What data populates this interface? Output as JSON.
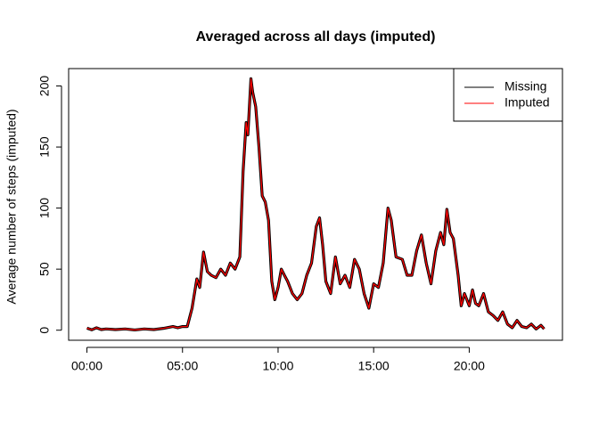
{
  "chart_data": {
    "type": "line",
    "title": "Averaged across all days (imputed)",
    "y_label": "Average number of steps (imputed)",
    "x": [
      0,
      0.25,
      0.5,
      0.75,
      1,
      1.5,
      2,
      2.5,
      3,
      3.5,
      4,
      4.5,
      4.75,
      5,
      5.25,
      5.5,
      5.75,
      5.9,
      6.1,
      6.3,
      6.5,
      6.75,
      7,
      7.25,
      7.5,
      7.75,
      8,
      8.17,
      8.33,
      8.42,
      8.58,
      8.67,
      8.83,
      9,
      9.17,
      9.33,
      9.5,
      9.67,
      9.83,
      10,
      10.17,
      10.33,
      10.5,
      10.75,
      11,
      11.25,
      11.5,
      11.75,
      12,
      12.17,
      12.33,
      12.5,
      12.75,
      13,
      13.25,
      13.5,
      13.75,
      14,
      14.25,
      14.5,
      14.75,
      15,
      15.25,
      15.5,
      15.75,
      15.92,
      16.17,
      16.5,
      16.75,
      17,
      17.25,
      17.5,
      17.75,
      18,
      18.25,
      18.5,
      18.67,
      18.83,
      19,
      19.17,
      19.42,
      19.58,
      19.75,
      20,
      20.17,
      20.33,
      20.5,
      20.75,
      21,
      21.25,
      21.5,
      21.75,
      22,
      22.25,
      22.5,
      22.75,
      23,
      23.25,
      23.5,
      23.75,
      23.92
    ],
    "series": [
      {
        "name": "Missing",
        "color": "#000000",
        "values": [
          1.7,
          0.3,
          2,
          0.5,
          1,
          0.5,
          1,
          0.2,
          1,
          0.5,
          1.5,
          3,
          2,
          3,
          3,
          18,
          42,
          35,
          64,
          48,
          45,
          43,
          50,
          45,
          55,
          50,
          60,
          130,
          170,
          160,
          206,
          195,
          183,
          150,
          110,
          105,
          90,
          40,
          25,
          35,
          50,
          45,
          40,
          30,
          25,
          30,
          45,
          55,
          85,
          92,
          70,
          40,
          30,
          60,
          38,
          45,
          35,
          58,
          50,
          30,
          18,
          38,
          35,
          55,
          100,
          90,
          60,
          58,
          45,
          45,
          65,
          78,
          55,
          38,
          65,
          80,
          70,
          99,
          80,
          75,
          45,
          20,
          30,
          20,
          33,
          22,
          20,
          30,
          15,
          12,
          8,
          15,
          5,
          2,
          8,
          3,
          2,
          5,
          1,
          4,
          1
        ]
      },
      {
        "name": "Imputed",
        "color": "#ff0000",
        "values": [
          1.7,
          0.3,
          2,
          0.5,
          1,
          0.5,
          1,
          0.2,
          1,
          0.5,
          1.5,
          3,
          2,
          3,
          3,
          18,
          42,
          35,
          64,
          48,
          45,
          43,
          50,
          45,
          55,
          50,
          60,
          130,
          170,
          160,
          206,
          195,
          183,
          150,
          110,
          105,
          90,
          40,
          25,
          35,
          50,
          45,
          40,
          30,
          25,
          30,
          45,
          55,
          85,
          92,
          70,
          40,
          30,
          60,
          38,
          45,
          35,
          58,
          50,
          30,
          18,
          38,
          35,
          55,
          100,
          90,
          60,
          58,
          45,
          45,
          65,
          78,
          55,
          38,
          65,
          80,
          70,
          99,
          80,
          75,
          45,
          20,
          30,
          20,
          33,
          22,
          20,
          30,
          15,
          12,
          8,
          15,
          5,
          2,
          8,
          3,
          2,
          5,
          1,
          4,
          1
        ]
      }
    ],
    "xlim": [
      -0.957,
      24.877
    ],
    "ylim": [
      -8.24,
      214.24
    ],
    "xticks": [
      {
        "value": 0,
        "label": "00:00"
      },
      {
        "value": 5,
        "label": "05:00"
      },
      {
        "value": 10,
        "label": "10:00"
      },
      {
        "value": 15,
        "label": "15:00"
      },
      {
        "value": 20,
        "label": "20:00"
      }
    ],
    "yticks": [
      0,
      50,
      100,
      150,
      200
    ],
    "legend": "top-right"
  }
}
